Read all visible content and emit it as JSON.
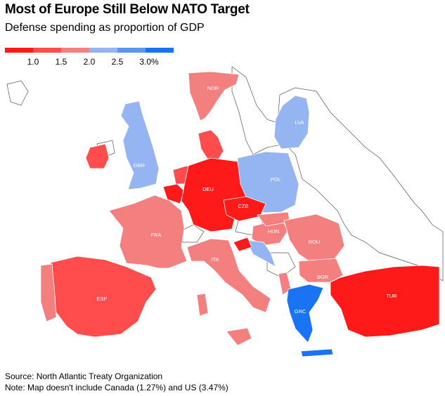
{
  "header": {
    "title": "Most of Europe Still Below NATO Target",
    "subtitle": "Defense spending as proportion of GDP"
  },
  "legend": {
    "colors": [
      "#ff1a1a",
      "#ff4d4d",
      "#f47f7f",
      "#94b5f2",
      "#5b95f2",
      "#1a73f2"
    ],
    "ticks": [
      "1.0",
      "1.5",
      "2.0",
      "2.5",
      "3.0%"
    ]
  },
  "countries": [
    {
      "code": "NOR",
      "color": "#f47f7f"
    },
    {
      "code": "LVA",
      "color": "#94b5f2"
    },
    {
      "code": "GBR",
      "color": "#94b5f2"
    },
    {
      "code": "POL",
      "color": "#94b5f2"
    },
    {
      "code": "DEU",
      "color": "#ff1a1a"
    },
    {
      "code": "CZE",
      "color": "#ff1a1a"
    },
    {
      "code": "FRA",
      "color": "#f47f7f"
    },
    {
      "code": "HUN",
      "color": "#f47f7f"
    },
    {
      "code": "ROU",
      "color": "#f47f7f"
    },
    {
      "code": "ITA",
      "color": "#f47f7f"
    },
    {
      "code": "BGR",
      "color": "#f47f7f"
    },
    {
      "code": "ESP",
      "color": "#ff1a1a"
    },
    {
      "code": "GRC",
      "color": "#1a73f2"
    },
    {
      "code": "TUR",
      "color": "#ff1a1a"
    }
  ],
  "footer": {
    "source": "Source: North Atlantic Treaty Organization",
    "note": "Note: Map doesn't include Canada (1.27%) and US (3.47%)"
  }
}
